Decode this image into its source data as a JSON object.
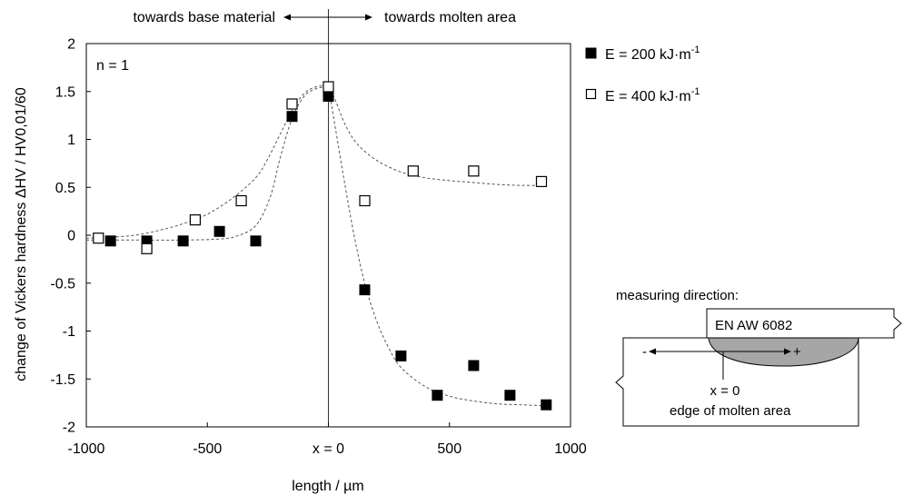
{
  "chart_data": {
    "type": "scatter",
    "x": {
      "label": "length / µm",
      "lim": [
        -1000,
        1000
      ],
      "ticks": [
        -1000,
        -500,
        0,
        500,
        1000
      ],
      "tick_labels": [
        "-1000",
        "-500",
        "x = 0",
        "500",
        "1000"
      ]
    },
    "y": {
      "label": "change of Vickers hardness ΔHV / HV0,01/60",
      "lim": [
        -2,
        2
      ],
      "ticks": [
        -2,
        -1.5,
        -1,
        -0.5,
        0,
        0.5,
        1,
        1.5,
        2
      ],
      "tick_labels": [
        "-2",
        "-1.5",
        "-1",
        "-0.5",
        "0",
        "0.5",
        "1",
        "1.5",
        "2"
      ]
    },
    "grid": false,
    "legend_position": "outside-right-top",
    "annotations": {
      "n_label": "n = 1",
      "left_direction": "towards base material",
      "right_direction": "towards molten area"
    },
    "series": [
      {
        "name": "E = 200 kJ·m",
        "name_sup": "-1",
        "marker": "filled-square",
        "color": "#000000",
        "points": [
          [
            -900,
            -0.06
          ],
          [
            -750,
            -0.06
          ],
          [
            -600,
            -0.06
          ],
          [
            -450,
            0.04
          ],
          [
            -300,
            -0.06
          ],
          [
            -150,
            1.24
          ],
          [
            0,
            1.45
          ],
          [
            150,
            -0.57
          ],
          [
            300,
            -1.26
          ],
          [
            450,
            -1.67
          ],
          [
            600,
            -1.36
          ],
          [
            750,
            -1.67
          ],
          [
            900,
            -1.77
          ]
        ],
        "fit": [
          [
            -1000,
            -0.05
          ],
          [
            -800,
            -0.05
          ],
          [
            -600,
            -0.05
          ],
          [
            -450,
            -0.04
          ],
          [
            -380,
            -0.01
          ],
          [
            -300,
            0.1
          ],
          [
            -240,
            0.4
          ],
          [
            -200,
            0.8
          ],
          [
            -150,
            1.22
          ],
          [
            -100,
            1.45
          ],
          [
            -50,
            1.53
          ],
          [
            0,
            1.55
          ],
          [
            30,
            1.1
          ],
          [
            70,
            0.5
          ],
          [
            110,
            -0.05
          ],
          [
            150,
            -0.5
          ],
          [
            200,
            -0.9
          ],
          [
            250,
            -1.18
          ],
          [
            300,
            -1.38
          ],
          [
            400,
            -1.58
          ],
          [
            500,
            -1.68
          ],
          [
            600,
            -1.73
          ],
          [
            700,
            -1.76
          ],
          [
            800,
            -1.77
          ],
          [
            900,
            -1.78
          ]
        ]
      },
      {
        "name": "E = 400 kJ·m",
        "name_sup": "-1",
        "marker": "open-square",
        "color": "#000000",
        "points": [
          [
            -950,
            -0.03
          ],
          [
            -750,
            -0.14
          ],
          [
            -550,
            0.16
          ],
          [
            -360,
            0.36
          ],
          [
            -150,
            1.37
          ],
          [
            0,
            1.55
          ],
          [
            150,
            0.36
          ],
          [
            350,
            0.67
          ],
          [
            600,
            0.67
          ],
          [
            880,
            0.56
          ]
        ],
        "fit": [
          [
            -1000,
            -0.03
          ],
          [
            -900,
            -0.02
          ],
          [
            -800,
            0.0
          ],
          [
            -700,
            0.05
          ],
          [
            -600,
            0.12
          ],
          [
            -500,
            0.22
          ],
          [
            -400,
            0.38
          ],
          [
            -300,
            0.6
          ],
          [
            -250,
            0.8
          ],
          [
            -200,
            1.05
          ],
          [
            -150,
            1.3
          ],
          [
            -100,
            1.48
          ],
          [
            -50,
            1.55
          ],
          [
            0,
            1.56
          ],
          [
            30,
            1.4
          ],
          [
            70,
            1.15
          ],
          [
            120,
            0.95
          ],
          [
            200,
            0.78
          ],
          [
            300,
            0.66
          ],
          [
            400,
            0.6
          ],
          [
            500,
            0.57
          ],
          [
            600,
            0.55
          ],
          [
            700,
            0.53
          ],
          [
            800,
            0.52
          ],
          [
            900,
            0.52
          ]
        ]
      }
    ]
  },
  "schematic": {
    "title": "measuring direction:",
    "material_label": "EN AW 6082",
    "minus": "-",
    "plus": "+",
    "x0_label": "x = 0",
    "edge_label": "edge of molten area"
  }
}
